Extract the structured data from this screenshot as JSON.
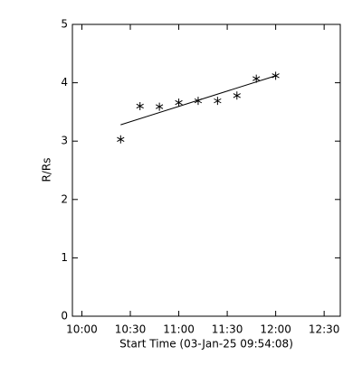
{
  "chart_data": {
    "type": "scatter",
    "x_label": "Start Time (03-Jan-25 09:54:08)",
    "y_label": "R/Rs",
    "x": [
      624,
      636,
      648,
      660,
      672,
      684,
      696,
      708,
      720
    ],
    "values": [
      3.03,
      3.6,
      3.59,
      3.66,
      3.69,
      3.69,
      3.78,
      4.07,
      4.12
    ],
    "marker": "asterisk",
    "color": "#000000",
    "fit": {
      "x": [
        624,
        720
      ],
      "values": [
        3.28,
        4.12
      ],
      "color": "#000000"
    },
    "xlim": [
      594.13,
      760
    ],
    "ylim": [
      0,
      5
    ],
    "xticks": [
      {
        "value": 600,
        "label": "10:00"
      },
      {
        "value": 630,
        "label": "10:30"
      },
      {
        "value": 660,
        "label": "11:00"
      },
      {
        "value": 690,
        "label": "11:30"
      },
      {
        "value": 720,
        "label": "12:00"
      },
      {
        "value": 750,
        "label": "12:30"
      }
    ],
    "yticks": [
      0,
      1,
      2,
      3,
      4,
      5
    ]
  }
}
